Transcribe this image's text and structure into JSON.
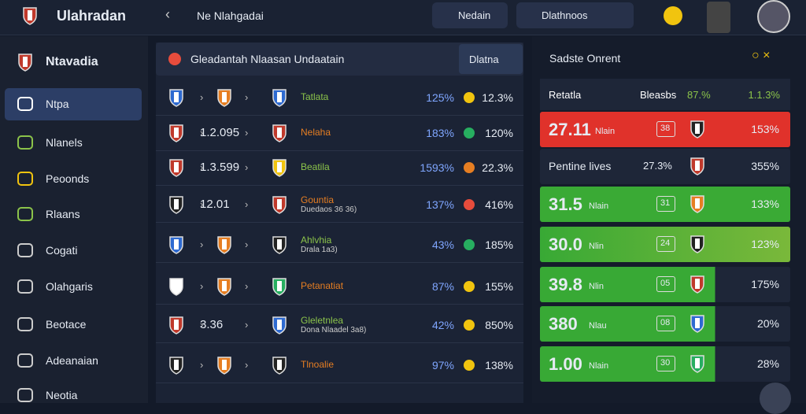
{
  "header": {
    "title": "Ulahradan",
    "breadcrumb": "Ne Nlahgadai",
    "button1": "Nedain",
    "button2": "Dlathnoos"
  },
  "sidebar": {
    "title": "Ntavadia",
    "items": [
      "Ntpa",
      "Nlanels",
      "Peoonds",
      "Rlaans",
      "Cogati",
      "Olahgaris",
      "Beotace",
      "Adeanaian",
      "Neotia"
    ]
  },
  "table": {
    "title": "Gleadantah Nlaasan Undaatain",
    "action": "Dlatna",
    "rows": [
      {
        "score": "",
        "name": "Tatlata",
        "sub": "",
        "a": "125%",
        "b": "12.3%"
      },
      {
        "score": "1.2.095",
        "name": "Nelaha",
        "sub": "",
        "a": "183%",
        "b": "120%"
      },
      {
        "score": "1.3.599",
        "name": "Beatila",
        "sub": "",
        "a": "1593%",
        "b": "22.3%"
      },
      {
        "score": "12.01",
        "name": "Gountia",
        "sub": "Duedaos 36 36)",
        "a": "137%",
        "b": "416%"
      },
      {
        "score": "",
        "name": "Ahlvhia",
        "sub": "Drala 1a3)",
        "a": "43%",
        "b": "185%"
      },
      {
        "score": "",
        "name": "Petanatiat",
        "sub": "",
        "a": "87%",
        "b": "155%"
      },
      {
        "score": "3.36",
        "name": "Gleletnlea",
        "sub": "Dona Nlaadel 3a8)",
        "a": "42%",
        "b": "850%"
      },
      {
        "score": "",
        "name": "Tlnoalie",
        "sub": "",
        "a": "97%",
        "b": "138%"
      }
    ]
  },
  "panel": {
    "title": "Sadste Onrent",
    "head": [
      "Retatla",
      "Bleasbs",
      "87.%",
      "1.1.3%"
    ],
    "rows": [
      {
        "big": "27.11",
        "small": "Nlain",
        "chip": "38",
        "pct": "153%"
      },
      {
        "big": "Pentine lives",
        "small": "27.3%",
        "chip": "",
        "pct": "355%"
      },
      {
        "big": "31.5",
        "small": "Nlain",
        "chip": "31",
        "pct": "133%"
      },
      {
        "big": "30.0",
        "small": "Nlin",
        "chip": "24",
        "pct": "123%"
      },
      {
        "big": "39.8",
        "small": "Nlin",
        "chip": "05",
        "pct": "175%"
      },
      {
        "big": "380",
        "small": "Nlau",
        "chip": "08",
        "pct": "20%"
      },
      {
        "big": "1.00",
        "small": "Nlain",
        "chip": "30",
        "pct": "28%"
      }
    ]
  }
}
